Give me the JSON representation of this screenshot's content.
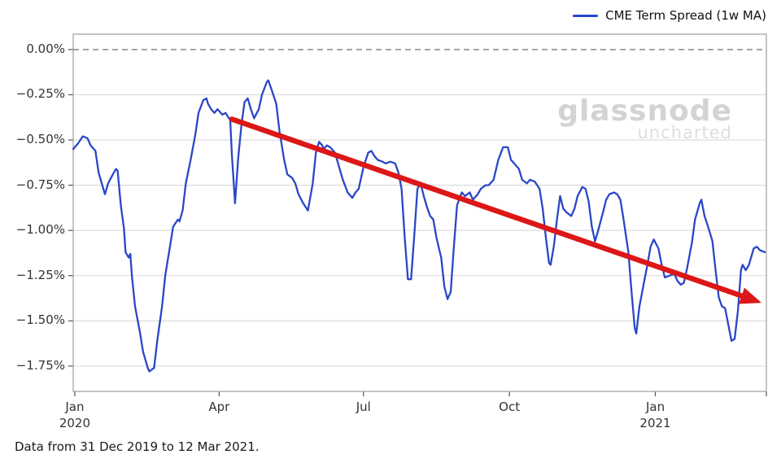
{
  "page": {
    "background": "#ffffff"
  },
  "legend": {
    "label": "CME Term Spread (1w MA)"
  },
  "watermark": {
    "line1": "glassnode",
    "line2": "uncharted"
  },
  "footer": {
    "text": "Data from 31 Dec 2019 to 12 Mar 2021."
  },
  "colors": {
    "line": "#2a46c8",
    "trend_arrow": "#dc1717",
    "grid": "#d9d9d9",
    "zero_line": "#7a7a7a",
    "frame": "#9c9c9c",
    "tick": "#555555",
    "tick_label": "#333333",
    "watermark": "#d3d3d3"
  },
  "chart_data": {
    "type": "line",
    "title": "",
    "series_name": "CME Term Spread (1w MA)",
    "x_unit": "days since 2019-12-31",
    "x_range": [
      "2019-12-31",
      "2021-03-12"
    ],
    "xlim_days": [
      0,
      437
    ],
    "ylim": [
      -1.89,
      0.085
    ],
    "grid": true,
    "legend_position": "upper right",
    "y_ticks": [
      {
        "value": 0.0,
        "label": "0.00%"
      },
      {
        "value": -0.25,
        "label": "−0.25%"
      },
      {
        "value": -0.5,
        "label": "−0.50%"
      },
      {
        "value": -0.75,
        "label": "−0.75%"
      },
      {
        "value": -1.0,
        "label": "−1.00%"
      },
      {
        "value": -1.25,
        "label": "−1.25%"
      },
      {
        "value": -1.5,
        "label": "−1.50%"
      },
      {
        "value": -1.75,
        "label": "−1.75%"
      }
    ],
    "x_ticks": [
      {
        "day": 1,
        "line1": "Jan",
        "line2": "2020"
      },
      {
        "day": 92,
        "line1": "Apr",
        "line2": ""
      },
      {
        "day": 183,
        "line1": "Jul",
        "line2": ""
      },
      {
        "day": 275,
        "line1": "Oct",
        "line2": ""
      },
      {
        "day": 367,
        "line1": "Jan",
        "line2": "2021"
      },
      {
        "day": 437,
        "line1": "",
        "line2": ""
      }
    ],
    "zero_line": {
      "style": "dashed",
      "value": 0.0
    },
    "points": [
      [
        0,
        -0.55
      ],
      [
        3,
        -0.52
      ],
      [
        6,
        -0.48
      ],
      [
        9,
        -0.49
      ],
      [
        11,
        -0.53
      ],
      [
        14,
        -0.56
      ],
      [
        16,
        -0.68
      ],
      [
        19,
        -0.77
      ],
      [
        20,
        -0.8
      ],
      [
        22,
        -0.74
      ],
      [
        25,
        -0.69
      ],
      [
        27,
        -0.66
      ],
      [
        28,
        -0.67
      ],
      [
        30,
        -0.86
      ],
      [
        32,
        -0.99
      ],
      [
        33,
        -1.12
      ],
      [
        35,
        -1.15
      ],
      [
        36,
        -1.13
      ],
      [
        37,
        -1.25
      ],
      [
        39,
        -1.42
      ],
      [
        42,
        -1.56
      ],
      [
        44,
        -1.67
      ],
      [
        47,
        -1.76
      ],
      [
        48,
        -1.78
      ],
      [
        51,
        -1.76
      ],
      [
        53,
        -1.61
      ],
      [
        56,
        -1.42
      ],
      [
        58,
        -1.25
      ],
      [
        61,
        -1.09
      ],
      [
        63,
        -0.98
      ],
      [
        66,
        -0.94
      ],
      [
        67,
        -0.95
      ],
      [
        69,
        -0.89
      ],
      [
        71,
        -0.74
      ],
      [
        74,
        -0.61
      ],
      [
        77,
        -0.47
      ],
      [
        79,
        -0.35
      ],
      [
        82,
        -0.28
      ],
      [
        84,
        -0.27
      ],
      [
        85,
        -0.3
      ],
      [
        87,
        -0.33
      ],
      [
        89,
        -0.35
      ],
      [
        91,
        -0.33
      ],
      [
        94,
        -0.36
      ],
      [
        96,
        -0.35
      ],
      [
        99,
        -0.39
      ],
      [
        100,
        -0.58
      ],
      [
        102,
        -0.85
      ],
      [
        104,
        -0.6
      ],
      [
        106,
        -0.42
      ],
      [
        108,
        -0.29
      ],
      [
        110,
        -0.27
      ],
      [
        112,
        -0.33
      ],
      [
        114,
        -0.38
      ],
      [
        117,
        -0.33
      ],
      [
        119,
        -0.25
      ],
      [
        122,
        -0.18
      ],
      [
        123,
        -0.17
      ],
      [
        125,
        -0.22
      ],
      [
        128,
        -0.3
      ],
      [
        130,
        -0.45
      ],
      [
        133,
        -0.61
      ],
      [
        135,
        -0.69
      ],
      [
        138,
        -0.71
      ],
      [
        140,
        -0.74
      ],
      [
        142,
        -0.8
      ],
      [
        145,
        -0.85
      ],
      [
        148,
        -0.89
      ],
      [
        151,
        -0.74
      ],
      [
        153,
        -0.57
      ],
      [
        155,
        -0.51
      ],
      [
        157,
        -0.53
      ],
      [
        158,
        -0.55
      ],
      [
        160,
        -0.53
      ],
      [
        162,
        -0.54
      ],
      [
        163,
        -0.55
      ],
      [
        165,
        -0.57
      ],
      [
        168,
        -0.66
      ],
      [
        170,
        -0.72
      ],
      [
        173,
        -0.79
      ],
      [
        176,
        -0.82
      ],
      [
        178,
        -0.79
      ],
      [
        180,
        -0.77
      ],
      [
        183,
        -0.65
      ],
      [
        186,
        -0.57
      ],
      [
        188,
        -0.56
      ],
      [
        190,
        -0.59
      ],
      [
        192,
        -0.61
      ],
      [
        195,
        -0.62
      ],
      [
        197,
        -0.63
      ],
      [
        200,
        -0.62
      ],
      [
        203,
        -0.63
      ],
      [
        205,
        -0.68
      ],
      [
        207,
        -0.77
      ],
      [
        209,
        -1.04
      ],
      [
        211,
        -1.27
      ],
      [
        213,
        -1.27
      ],
      [
        215,
        -1.03
      ],
      [
        217,
        -0.77
      ],
      [
        219,
        -0.74
      ],
      [
        221,
        -0.81
      ],
      [
        223,
        -0.87
      ],
      [
        225,
        -0.92
      ],
      [
        227,
        -0.94
      ],
      [
        229,
        -1.04
      ],
      [
        232,
        -1.15
      ],
      [
        234,
        -1.31
      ],
      [
        236,
        -1.38
      ],
      [
        238,
        -1.34
      ],
      [
        240,
        -1.09
      ],
      [
        242,
        -0.86
      ],
      [
        245,
        -0.79
      ],
      [
        247,
        -0.81
      ],
      [
        250,
        -0.79
      ],
      [
        252,
        -0.83
      ],
      [
        255,
        -0.8
      ],
      [
        257,
        -0.77
      ],
      [
        260,
        -0.75
      ],
      [
        262,
        -0.75
      ],
      [
        265,
        -0.72
      ],
      [
        268,
        -0.61
      ],
      [
        271,
        -0.54
      ],
      [
        274,
        -0.54
      ],
      [
        276,
        -0.61
      ],
      [
        278,
        -0.63
      ],
      [
        281,
        -0.66
      ],
      [
        283,
        -0.72
      ],
      [
        286,
        -0.74
      ],
      [
        288,
        -0.72
      ],
      [
        291,
        -0.73
      ],
      [
        294,
        -0.77
      ],
      [
        296,
        -0.88
      ],
      [
        298,
        -1.04
      ],
      [
        300,
        -1.18
      ],
      [
        301,
        -1.19
      ],
      [
        303,
        -1.09
      ],
      [
        305,
        -0.94
      ],
      [
        307,
        -0.81
      ],
      [
        309,
        -0.88
      ],
      [
        311,
        -0.9
      ],
      [
        314,
        -0.92
      ],
      [
        316,
        -0.88
      ],
      [
        318,
        -0.81
      ],
      [
        321,
        -0.76
      ],
      [
        323,
        -0.77
      ],
      [
        325,
        -0.84
      ],
      [
        327,
        -0.98
      ],
      [
        329,
        -1.06
      ],
      [
        331,
        -1.0
      ],
      [
        334,
        -0.9
      ],
      [
        336,
        -0.83
      ],
      [
        338,
        -0.8
      ],
      [
        341,
        -0.79
      ],
      [
        343,
        -0.8
      ],
      [
        345,
        -0.83
      ],
      [
        347,
        -0.94
      ],
      [
        350,
        -1.12
      ],
      [
        352,
        -1.34
      ],
      [
        354,
        -1.54
      ],
      [
        355,
        -1.57
      ],
      [
        357,
        -1.42
      ],
      [
        360,
        -1.28
      ],
      [
        362,
        -1.19
      ],
      [
        364,
        -1.09
      ],
      [
        366,
        -1.05
      ],
      [
        369,
        -1.1
      ],
      [
        371,
        -1.19
      ],
      [
        373,
        -1.26
      ],
      [
        376,
        -1.25
      ],
      [
        379,
        -1.24
      ],
      [
        381,
        -1.28
      ],
      [
        383,
        -1.3
      ],
      [
        385,
        -1.29
      ],
      [
        387,
        -1.21
      ],
      [
        390,
        -1.07
      ],
      [
        392,
        -0.94
      ],
      [
        395,
        -0.85
      ],
      [
        396,
        -0.83
      ],
      [
        398,
        -0.92
      ],
      [
        401,
        -1.0
      ],
      [
        403,
        -1.06
      ],
      [
        405,
        -1.22
      ],
      [
        407,
        -1.37
      ],
      [
        409,
        -1.42
      ],
      [
        411,
        -1.43
      ],
      [
        413,
        -1.52
      ],
      [
        415,
        -1.61
      ],
      [
        417,
        -1.6
      ],
      [
        419,
        -1.45
      ],
      [
        421,
        -1.22
      ],
      [
        422,
        -1.19
      ],
      [
        424,
        -1.22
      ],
      [
        426,
        -1.19
      ],
      [
        428,
        -1.13
      ],
      [
        429,
        -1.1
      ],
      [
        431,
        -1.09
      ],
      [
        433,
        -1.11
      ],
      [
        436,
        -1.12
      ]
    ],
    "trend_arrow": {
      "from_day": 100,
      "from_value": -0.385,
      "to_day": 434,
      "to_value": -1.4
    }
  }
}
